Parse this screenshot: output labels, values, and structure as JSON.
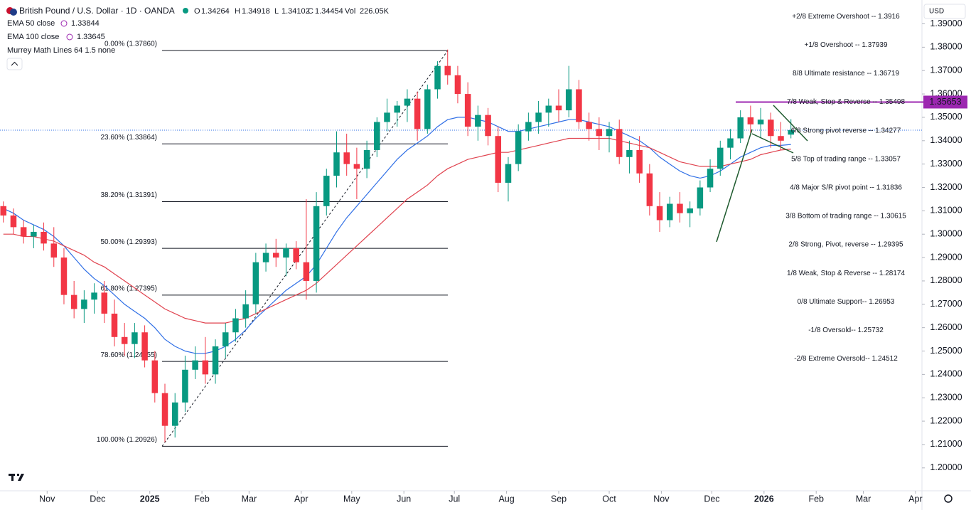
{
  "chart_data": {
    "type": "candlestick",
    "title": "British Pound / U.S. Dollar · 1D · OANDA",
    "ohlc_header": [
      {
        "label": "O",
        "value": 1.34264
      },
      {
        "label": "H",
        "value": 1.34918
      },
      {
        "label": "L",
        "value": 1.34102
      },
      {
        "label": "C",
        "value": 1.34454
      }
    ],
    "volume": {
      "label": "Vol",
      "value": 226050,
      "value_label": "226.05K"
    },
    "indicator_label": "Murrey Math Lines 64 1.5 none",
    "currency": "USD",
    "up_color": "#089981",
    "down_color": "#f23645",
    "xlim": [
      3,
      550
    ],
    "ylim": [
      1.1902,
      1.4002
    ],
    "xticks": [
      {
        "value": 31,
        "label": "Nov"
      },
      {
        "value": 61,
        "label": "Dec"
      },
      {
        "value": 92,
        "label": "2025"
      },
      {
        "value": 123,
        "label": "Feb"
      },
      {
        "value": 151,
        "label": "Mar"
      },
      {
        "value": 182,
        "label": "Apr"
      },
      {
        "value": 212,
        "label": "May"
      },
      {
        "value": 243,
        "label": "Jun"
      },
      {
        "value": 273,
        "label": "Jul"
      },
      {
        "value": 304,
        "label": "Aug"
      },
      {
        "value": 335,
        "label": "Sep"
      },
      {
        "value": 365,
        "label": "Oct"
      },
      {
        "value": 396,
        "label": "Nov"
      },
      {
        "value": 426,
        "label": "Dec"
      },
      {
        "value": 457,
        "label": "2026"
      },
      {
        "value": 488,
        "label": "Feb"
      },
      {
        "value": 516,
        "label": "Mar"
      },
      {
        "value": 547,
        "label": "Apr"
      }
    ],
    "yticks": [
      {
        "value": 1.39,
        "label": "1.39000"
      },
      {
        "value": 1.38,
        "label": "1.38000"
      },
      {
        "value": 1.37,
        "label": "1.37000"
      },
      {
        "value": 1.36,
        "label": "1.36000"
      },
      {
        "value": 1.35,
        "label": "1.35000"
      },
      {
        "value": 1.34,
        "label": "1.34000"
      },
      {
        "value": 1.33,
        "label": "1.33000"
      },
      {
        "value": 1.32,
        "label": "1.32000"
      },
      {
        "value": 1.31,
        "label": "1.31000"
      },
      {
        "value": 1.3,
        "label": "1.30000"
      },
      {
        "value": 1.29,
        "label": "1.29000"
      },
      {
        "value": 1.28,
        "label": "1.28000"
      },
      {
        "value": 1.27,
        "label": "1.27000"
      },
      {
        "value": 1.26,
        "label": "1.26000"
      },
      {
        "value": 1.25,
        "label": "1.25000"
      },
      {
        "value": 1.24,
        "label": "1.24000"
      },
      {
        "value": 1.23,
        "label": "1.23000"
      },
      {
        "value": 1.22,
        "label": "1.22000"
      },
      {
        "value": 1.21,
        "label": "1.21000"
      },
      {
        "value": 1.2,
        "label": "1.20000"
      }
    ],
    "x": [
      5,
      11,
      17,
      23,
      29,
      35,
      41,
      47,
      53,
      59,
      65,
      71,
      77,
      83,
      89,
      95,
      101,
      107,
      113,
      119,
      125,
      131,
      137,
      143,
      149,
      155,
      161,
      167,
      173,
      179,
      185,
      191,
      197,
      203,
      209,
      215,
      221,
      227,
      233,
      239,
      245,
      251,
      257,
      263,
      269,
      275,
      281,
      287,
      293,
      299,
      305,
      311,
      317,
      323,
      329,
      335,
      341,
      347,
      353,
      359,
      365,
      371,
      377,
      383,
      389,
      395,
      401,
      407,
      413,
      419,
      425,
      431,
      437,
      443,
      449,
      455,
      461,
      467,
      473
    ],
    "ohlc": [
      [
        1.312,
        1.314,
        1.305,
        1.308
      ],
      [
        1.308,
        1.311,
        1.3,
        1.303
      ],
      [
        1.303,
        1.306,
        1.296,
        1.299
      ],
      [
        1.299,
        1.304,
        1.294,
        1.301
      ],
      [
        1.301,
        1.305,
        1.293,
        1.296
      ],
      [
        1.296,
        1.303,
        1.286,
        1.29
      ],
      [
        1.29,
        1.294,
        1.27,
        1.274
      ],
      [
        1.274,
        1.28,
        1.264,
        1.268
      ],
      [
        1.268,
        1.276,
        1.262,
        1.272
      ],
      [
        1.272,
        1.279,
        1.266,
        1.275
      ],
      [
        1.275,
        1.28,
        1.262,
        1.266
      ],
      [
        1.266,
        1.272,
        1.252,
        1.256
      ],
      [
        1.256,
        1.262,
        1.248,
        1.253
      ],
      [
        1.253,
        1.262,
        1.247,
        1.258
      ],
      [
        1.258,
        1.261,
        1.243,
        1.246
      ],
      [
        1.246,
        1.25,
        1.228,
        1.232
      ],
      [
        1.232,
        1.236,
        1.211,
        1.218
      ],
      [
        1.218,
        1.232,
        1.213,
        1.228
      ],
      [
        1.228,
        1.248,
        1.224,
        1.242
      ],
      [
        1.242,
        1.252,
        1.238,
        1.246
      ],
      [
        1.246,
        1.256,
        1.236,
        1.24
      ],
      [
        1.24,
        1.255,
        1.236,
        1.252
      ],
      [
        1.252,
        1.262,
        1.247,
        1.258
      ],
      [
        1.258,
        1.268,
        1.254,
        1.264
      ],
      [
        1.264,
        1.276,
        1.26,
        1.27
      ],
      [
        1.27,
        1.292,
        1.266,
        1.288
      ],
      [
        1.288,
        1.296,
        1.284,
        1.292
      ],
      [
        1.292,
        1.298,
        1.286,
        1.29
      ],
      [
        1.29,
        1.296,
        1.282,
        1.294
      ],
      [
        1.294,
        1.297,
        1.285,
        1.288
      ],
      [
        1.288,
        1.315,
        1.272,
        1.28
      ],
      [
        1.28,
        1.318,
        1.275,
        1.312
      ],
      [
        1.312,
        1.328,
        1.308,
        1.325
      ],
      [
        1.325,
        1.344,
        1.32,
        1.335
      ],
      [
        1.335,
        1.343,
        1.325,
        1.33
      ],
      [
        1.33,
        1.337,
        1.315,
        1.328
      ],
      [
        1.328,
        1.34,
        1.324,
        1.336
      ],
      [
        1.336,
        1.35,
        1.333,
        1.348
      ],
      [
        1.348,
        1.358,
        1.344,
        1.352
      ],
      [
        1.352,
        1.357,
        1.346,
        1.355
      ],
      [
        1.355,
        1.362,
        1.348,
        1.358
      ],
      [
        1.358,
        1.361,
        1.34,
        1.345
      ],
      [
        1.345,
        1.364,
        1.343,
        1.362
      ],
      [
        1.362,
        1.374,
        1.358,
        1.372
      ],
      [
        1.372,
        1.379,
        1.364,
        1.368
      ],
      [
        1.368,
        1.372,
        1.356,
        1.36
      ],
      [
        1.36,
        1.365,
        1.342,
        1.346
      ],
      [
        1.346,
        1.355,
        1.34,
        1.351
      ],
      [
        1.351,
        1.354,
        1.338,
        1.342
      ],
      [
        1.342,
        1.346,
        1.318,
        1.322
      ],
      [
        1.322,
        1.333,
        1.314,
        1.33
      ],
      [
        1.33,
        1.347,
        1.327,
        1.344
      ],
      [
        1.344,
        1.352,
        1.34,
        1.348
      ],
      [
        1.348,
        1.357,
        1.343,
        1.352
      ],
      [
        1.352,
        1.358,
        1.346,
        1.355
      ],
      [
        1.355,
        1.362,
        1.348,
        1.353
      ],
      [
        1.353,
        1.372,
        1.35,
        1.362
      ],
      [
        1.362,
        1.366,
        1.345,
        1.348
      ],
      [
        1.348,
        1.352,
        1.34,
        1.345
      ],
      [
        1.345,
        1.35,
        1.336,
        1.342
      ],
      [
        1.342,
        1.348,
        1.335,
        1.345
      ],
      [
        1.345,
        1.349,
        1.33,
        1.333
      ],
      [
        1.333,
        1.34,
        1.326,
        1.336
      ],
      [
        1.336,
        1.342,
        1.322,
        1.326
      ],
      [
        1.326,
        1.33,
        1.308,
        1.312
      ],
      [
        1.312,
        1.318,
        1.301,
        1.306
      ],
      [
        1.306,
        1.316,
        1.303,
        1.313
      ],
      [
        1.313,
        1.318,
        1.305,
        1.309
      ],
      [
        1.309,
        1.314,
        1.303,
        1.311
      ],
      [
        1.311,
        1.323,
        1.308,
        1.32
      ],
      [
        1.32,
        1.332,
        1.318,
        1.328
      ],
      [
        1.328,
        1.34,
        1.325,
        1.337
      ],
      [
        1.337,
        1.345,
        1.332,
        1.341
      ],
      [
        1.341,
        1.353,
        1.339,
        1.35
      ],
      [
        1.35,
        1.355,
        1.343,
        1.347
      ],
      [
        1.347,
        1.354,
        1.341,
        1.349
      ],
      [
        1.349,
        1.352,
        1.337,
        1.342
      ],
      [
        1.342,
        1.348,
        1.336,
        1.34
      ],
      [
        1.3426,
        1.3492,
        1.341,
        1.3445
      ]
    ],
    "series": [
      {
        "name": "EMA 50 close",
        "color": "#2f6fe6",
        "last": 1.33844,
        "values": [
          1.311,
          1.309,
          1.306,
          1.304,
          1.302,
          1.299,
          1.295,
          1.29,
          1.285,
          1.281,
          1.278,
          1.274,
          1.27,
          1.267,
          1.264,
          1.26,
          1.255,
          1.252,
          1.25,
          1.249,
          1.249,
          1.25,
          1.252,
          1.255,
          1.259,
          1.264,
          1.268,
          1.272,
          1.276,
          1.279,
          1.282,
          1.287,
          1.294,
          1.301,
          1.307,
          1.312,
          1.317,
          1.322,
          1.327,
          1.332,
          1.336,
          1.339,
          1.342,
          1.346,
          1.349,
          1.35,
          1.35,
          1.349,
          1.348,
          1.346,
          1.344,
          1.344,
          1.345,
          1.346,
          1.347,
          1.348,
          1.349,
          1.349,
          1.348,
          1.347,
          1.346,
          1.344,
          1.342,
          1.34,
          1.337,
          1.333,
          1.33,
          1.327,
          1.325,
          1.324,
          1.325,
          1.327,
          1.33,
          1.333,
          1.335,
          1.337,
          1.338,
          1.338,
          1.3384
        ]
      },
      {
        "name": "EMA 100 close",
        "color": "#e0434f",
        "last": 1.33645,
        "values": [
          1.3,
          1.3,
          1.299,
          1.299,
          1.298,
          1.297,
          1.295,
          1.293,
          1.291,
          1.288,
          1.286,
          1.283,
          1.28,
          1.277,
          1.274,
          1.271,
          1.268,
          1.266,
          1.264,
          1.263,
          1.262,
          1.262,
          1.262,
          1.263,
          1.264,
          1.266,
          1.268,
          1.27,
          1.272,
          1.274,
          1.276,
          1.279,
          1.283,
          1.287,
          1.291,
          1.295,
          1.299,
          1.303,
          1.307,
          1.311,
          1.315,
          1.318,
          1.321,
          1.325,
          1.328,
          1.33,
          1.332,
          1.333,
          1.334,
          1.335,
          1.335,
          1.336,
          1.337,
          1.338,
          1.339,
          1.34,
          1.341,
          1.341,
          1.341,
          1.341,
          1.341,
          1.34,
          1.339,
          1.338,
          1.337,
          1.335,
          1.333,
          1.331,
          1.33,
          1.329,
          1.329,
          1.329,
          1.33,
          1.331,
          1.332,
          1.334,
          1.335,
          1.336,
          1.3364
        ]
      }
    ],
    "fib_levels": [
      {
        "label": "0.00% (1.37860)",
        "value": 1.3786
      },
      {
        "label": "23.60% (1.33864)",
        "value": 1.33864
      },
      {
        "label": "38.20% (1.31391)",
        "value": 1.31391
      },
      {
        "label": "50.00% (1.29393)",
        "value": 1.29393
      },
      {
        "label": "61.80% (1.27395)",
        "value": 1.27395
      },
      {
        "label": "78.60% (1.24555)",
        "value": 1.24555
      },
      {
        "label": "100.00% (1.20926)",
        "value": 1.20926
      }
    ],
    "murrey_lines": [
      {
        "label": "+2/8 Extreme Overshoot --  1.3916",
        "value": 1.3916,
        "color": "#f23645"
      },
      {
        "label": "+1/8 Overshoot --  1.37939",
        "value": 1.37939,
        "color": "#f23645"
      },
      {
        "label": "8/8 Ultimate resistance --  1.36719",
        "value": 1.36719,
        "color": "#00a5c8"
      },
      {
        "label": "7/8 Weak, Stop & Reverse --  1.35498",
        "value": 1.35498,
        "color": "#ff9800"
      },
      {
        "label": "6/8 Strong pivot reverse --  1.34277",
        "value": 1.34277,
        "color": "#d500f9"
      },
      {
        "label": "5/8 Top of trading range --  1.33057",
        "value": 1.33057,
        "color": "#43a047"
      },
      {
        "label": "4/8 Major S/R pivot point --  1.31836",
        "value": 1.31836,
        "color": "#00a5c8"
      },
      {
        "label": "3/8 Bottom of trading range --  1.30615",
        "value": 1.30615,
        "color": "#43a047"
      },
      {
        "label": "2/8 Strong, Pivot, reverse --  1.29395",
        "value": 1.29395,
        "color": "#d500f9"
      },
      {
        "label": "1/8 Weak, Stop & Reverse --  1.28174",
        "value": 1.28174,
        "color": "#ff9800"
      },
      {
        "label": "0/8 Ultimate Support--  1.26953",
        "value": 1.26953,
        "color": "#00a5c8"
      },
      {
        "label": "-1/8 Oversold--  1.25732",
        "value": 1.25732,
        "color": "#43a047"
      },
      {
        "label": "-2/8 Extreme Oversold--  1.24512",
        "value": 1.24512,
        "color": "#43a047"
      }
    ],
    "price_line": {
      "value": 1.35653,
      "color": "#9c27b0"
    }
  }
}
